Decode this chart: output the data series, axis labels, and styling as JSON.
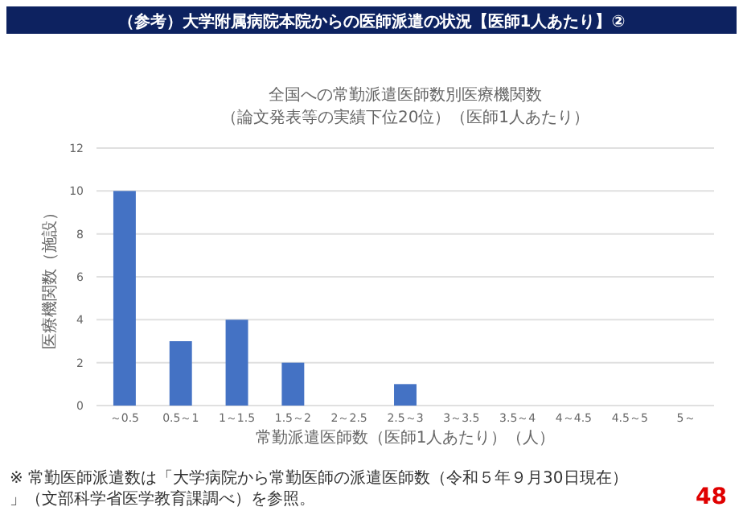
{
  "chart_data": {
    "type": "bar",
    "title": "全国への常勤派遣医師数別医療機関数",
    "subtitle": "（論文発表等の実績下位20位）（医師1人あたり）",
    "xlabel": "常勤派遣医師数（医師1人あたり）（人）",
    "ylabel": "医療機関数（施設）",
    "categories": [
      "～0.5",
      "0.5～1",
      "1～1.5",
      "1.5～2",
      "2～2.5",
      "2.5～3",
      "3～3.5",
      "3.5～4",
      "4～4.5",
      "4.5～5",
      "5～"
    ],
    "values": [
      10,
      3,
      4,
      2,
      0,
      1,
      0,
      0,
      0,
      0,
      0
    ],
    "color": "#4472c4",
    "ylim": [
      0,
      12
    ],
    "yticks": [
      0,
      2,
      4,
      6,
      8,
      10,
      12
    ],
    "grid": "y",
    "annotations": [
      "（参考）大学附属病院本院からの医師派遣の状況【医師1人あたり】②",
      "※ 常勤医師派遣数は「大学病院から常勤医師の派遣医師数（令和５年９月30日現在）」（文部科学省医学教育課調べ）を参照。",
      "48"
    ]
  }
}
